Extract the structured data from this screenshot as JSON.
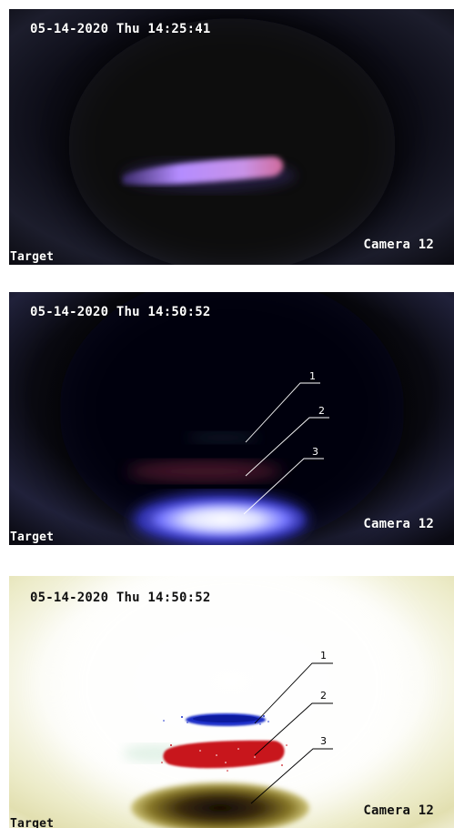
{
  "frames": [
    {
      "timestamp": "05-14-2020 Thu 14:25:41",
      "camera_label": "Camera 12",
      "target_label": "Target",
      "callouts": []
    },
    {
      "timestamp": "05-14-2020 Thu 14:50:52",
      "camera_label": "Camera 12",
      "target_label": "Target",
      "callouts": [
        "1",
        "2",
        "3"
      ]
    },
    {
      "timestamp": "05-14-2020 Thu 14:50:52",
      "camera_label": "Camera 12",
      "target_label": "Target",
      "callouts": [
        "1",
        "2",
        "3"
      ]
    }
  ],
  "colors": {
    "plasma_violet": "#b48cff",
    "plasma_pink": "#d06a9a",
    "layer_blue": "#1a2fc8",
    "layer_red": "#c8141c",
    "layer_dark": "#2a2008"
  }
}
